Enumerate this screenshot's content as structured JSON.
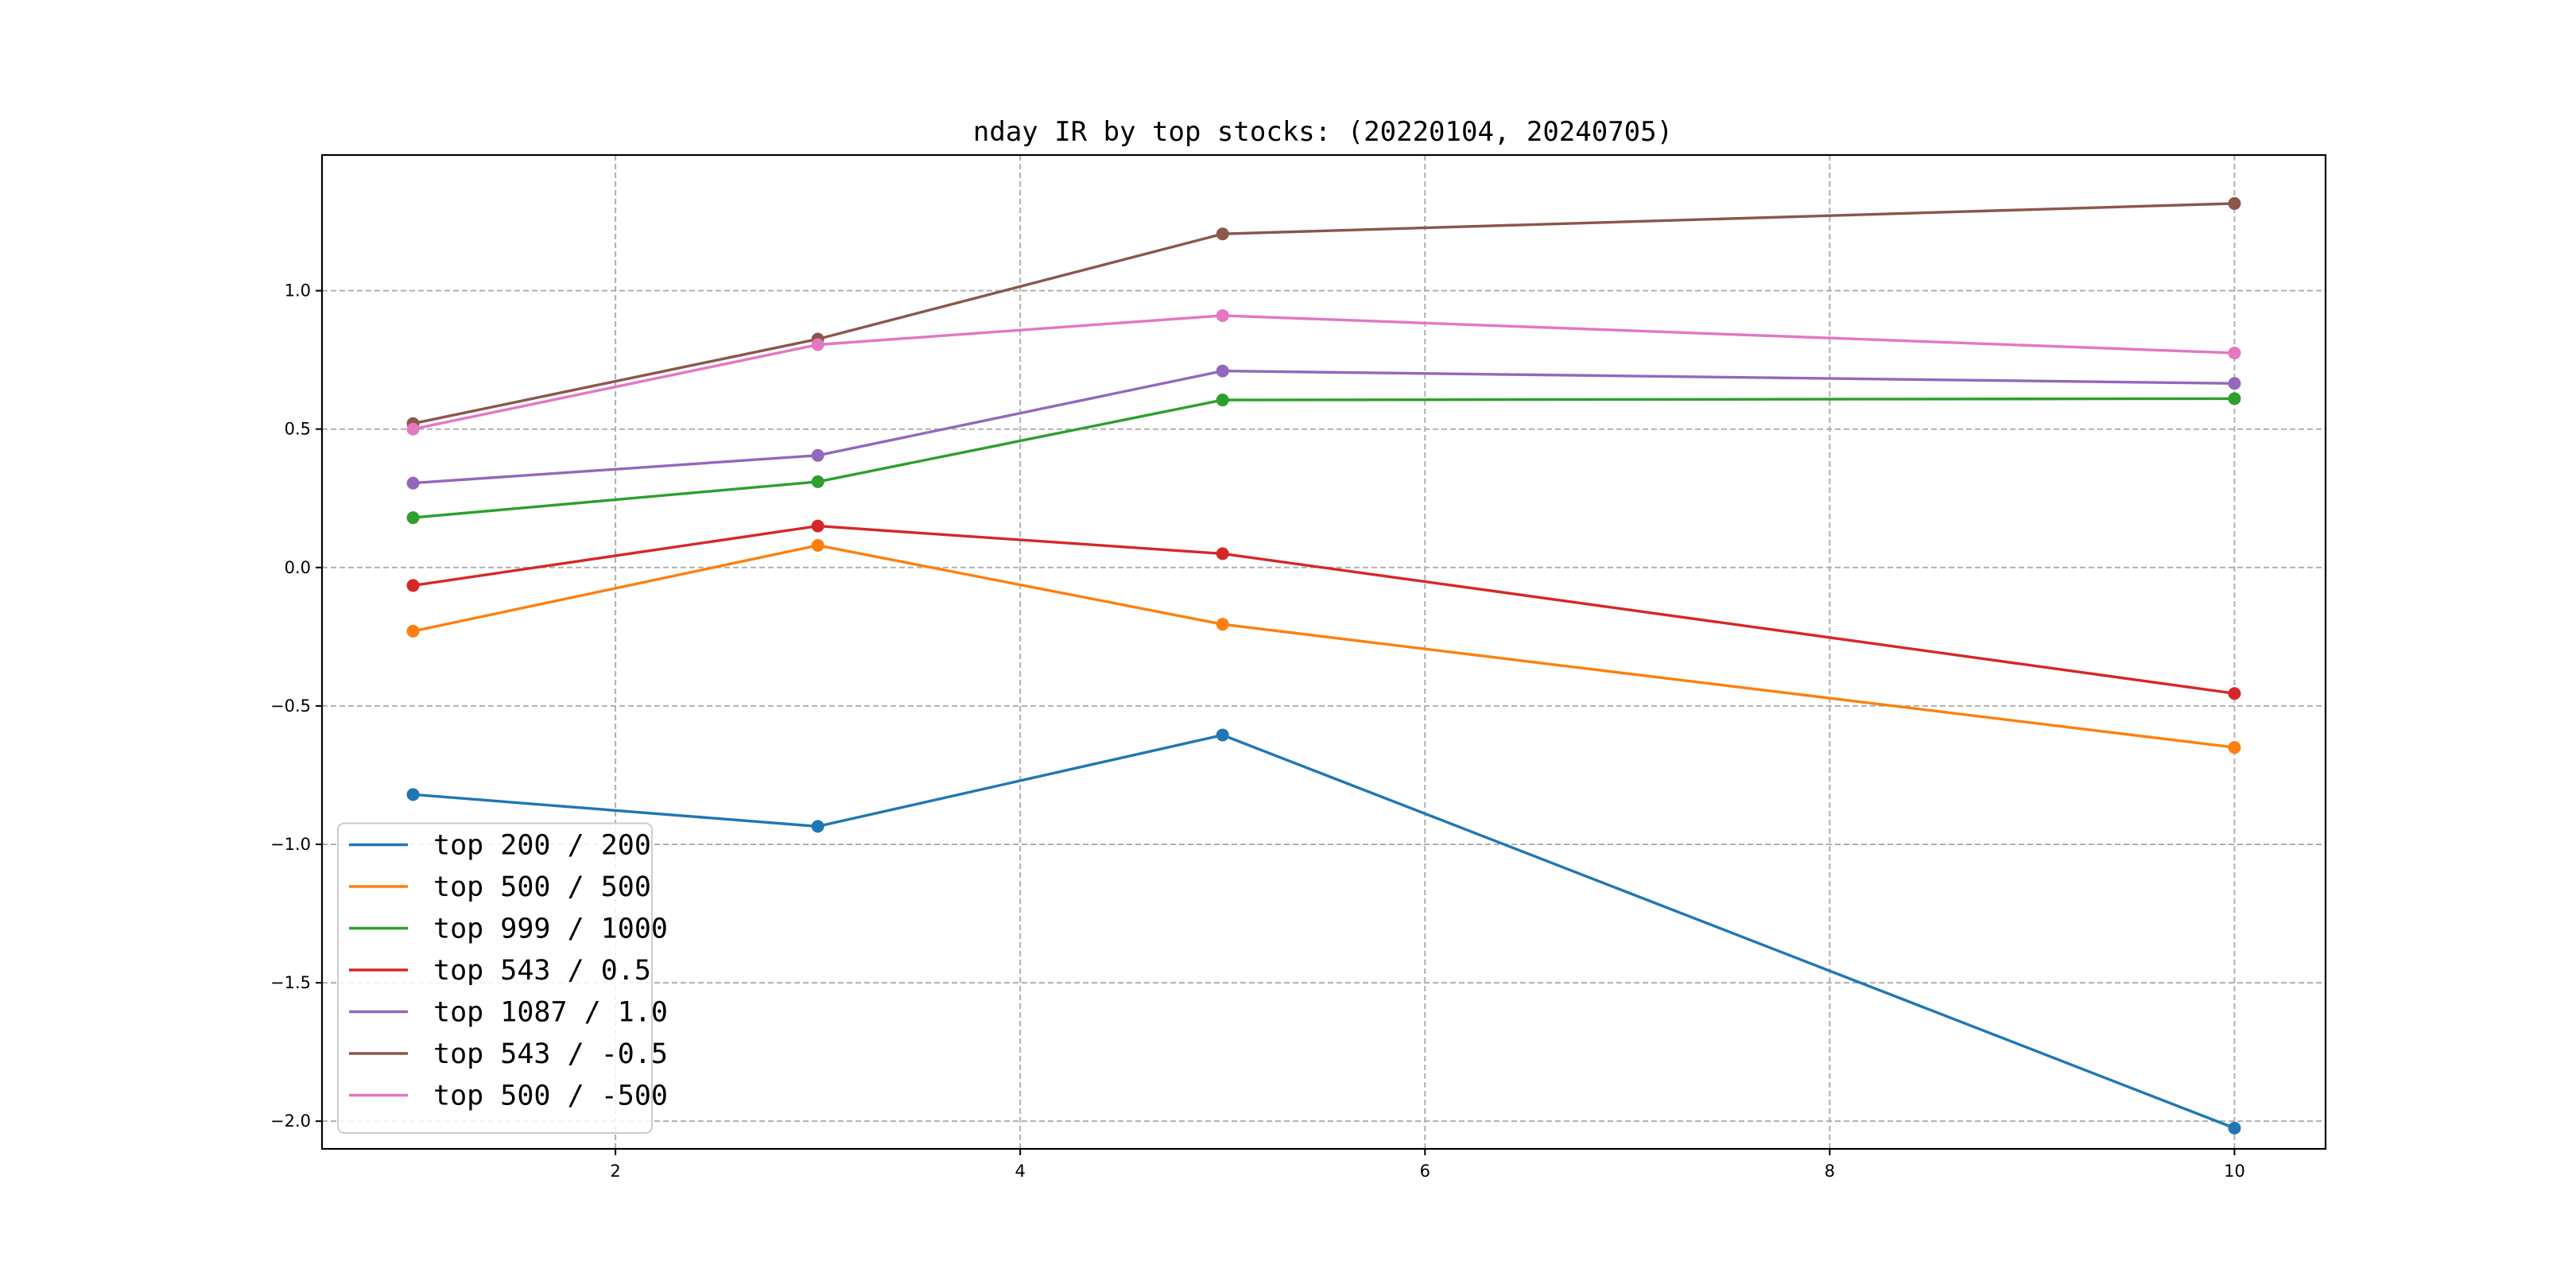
{
  "chart_data": {
    "type": "line",
    "title": "nday IR by top stocks: (20220104, 20240705)",
    "xlabel": "",
    "ylabel": "",
    "x": [
      1,
      3,
      5,
      10
    ],
    "xlim": [
      0.55,
      10.45
    ],
    "ylim": [
      -2.1,
      1.49
    ],
    "xticks": [
      2,
      4,
      6,
      8,
      10
    ],
    "yticks": [
      -2.0,
      -1.5,
      -1.0,
      -0.5,
      0.0,
      0.5,
      1.0
    ],
    "xtick_labels": [
      "2",
      "4",
      "6",
      "8",
      "10"
    ],
    "ytick_labels": [
      "−2.0",
      "−1.5",
      "−1.0",
      "−0.5",
      "0.0",
      "0.5",
      "1.0"
    ],
    "grid": true,
    "legend_position": "lower-left",
    "markers": "circle",
    "series": [
      {
        "name": "top 200 / 200",
        "color": "#1f77b4",
        "values": [
          -0.82,
          -0.935,
          -0.605,
          -2.025
        ]
      },
      {
        "name": "top 500 / 500",
        "color": "#ff7f0e",
        "values": [
          -0.23,
          0.08,
          -0.205,
          -0.65
        ]
      },
      {
        "name": "top 999 / 1000",
        "color": "#2ca02c",
        "values": [
          0.18,
          0.31,
          0.605,
          0.61
        ]
      },
      {
        "name": "top 543 / 0.5",
        "color": "#d62728",
        "values": [
          -0.065,
          0.15,
          0.05,
          -0.455
        ]
      },
      {
        "name": "top 1087 / 1.0",
        "color": "#9467bd",
        "values": [
          0.305,
          0.405,
          0.71,
          0.665
        ]
      },
      {
        "name": "top 543 / -0.5",
        "color": "#8c564b",
        "values": [
          0.52,
          0.825,
          1.205,
          1.315
        ]
      },
      {
        "name": "top 500 / -500",
        "color": "#e377c2",
        "values": [
          0.5,
          0.805,
          0.91,
          0.775
        ]
      }
    ]
  }
}
